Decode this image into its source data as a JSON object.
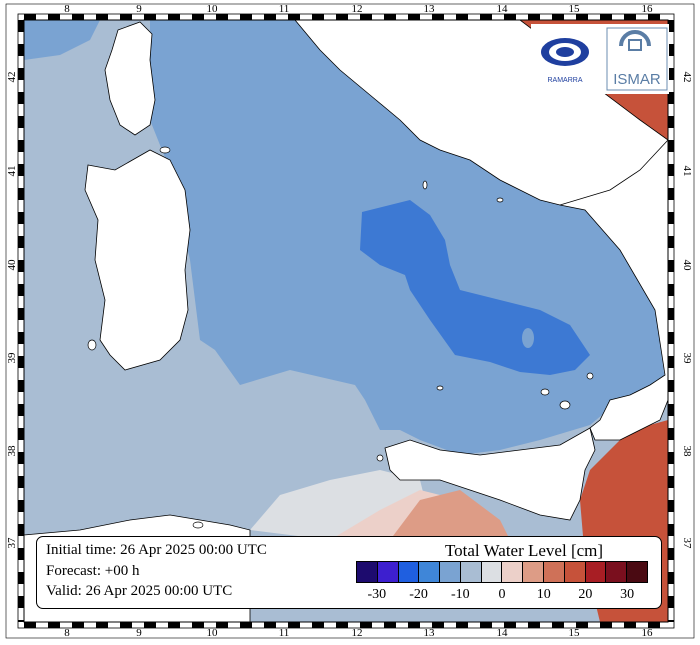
{
  "map": {
    "lon_ticks": [
      "8",
      "9",
      "10",
      "11",
      "12",
      "13",
      "14",
      "15",
      "16"
    ],
    "lat_ticks": [
      "42",
      "41",
      "40",
      "39",
      "38",
      "37"
    ],
    "colors": {
      "sea_light": "#a9bdd3",
      "sea_mid": "#7aa3d2",
      "sea_dark": "#3d79d3",
      "land": "#ffffff",
      "warm_pale": "#e8d2cc",
      "warm_mid": "#d88a70",
      "warm_strong": "#c6523a"
    }
  },
  "info": {
    "initial_time": "Initial time: 26 Apr 2025 00:00 UTC",
    "forecast": "Forecast: +00 h",
    "valid": "Valid: 26 Apr 2025 00:00 UTC"
  },
  "legend": {
    "title": "Total Water Level [cm]",
    "colors": [
      "#1d0b6e",
      "#3d1fcf",
      "#1f5fe0",
      "#3f86d8",
      "#7aa3d2",
      "#a9bdd3",
      "#dcdfe3",
      "#ecd0c9",
      "#dd9c86",
      "#cf7158",
      "#c6523a",
      "#a81e24",
      "#7a0f1e",
      "#4a0a12"
    ],
    "ticks": [
      "-30",
      "-20",
      "-10",
      "0",
      "10",
      "20",
      "30"
    ]
  },
  "logos": {
    "left_name": "RAMARRA",
    "right_name": "ISMAR"
  }
}
